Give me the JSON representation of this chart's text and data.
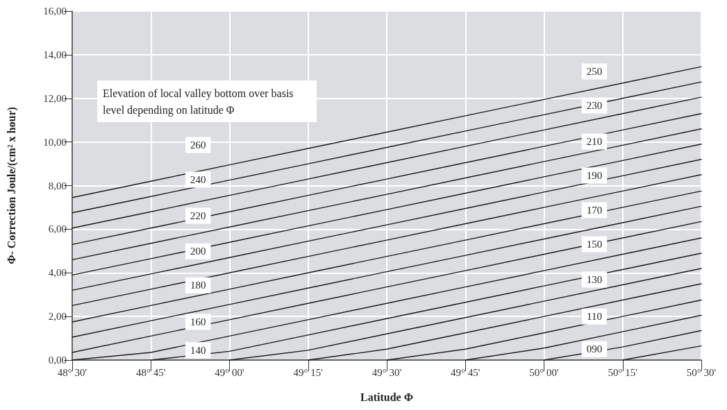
{
  "chart_data": {
    "type": "line",
    "xlabel": "Latitude Φ",
    "ylabel": "Φ- Correction Joule/(cm² x hour)",
    "categories": [
      "48° 30'",
      "48° 45'",
      "49° 00'",
      "49° 15'",
      "49° 30'",
      "49° 45'",
      "50° 00'",
      "50° 15'",
      "50° 30'"
    ],
    "ylim": [
      0,
      16
    ],
    "yticks": [
      {
        "value": 0,
        "label": "0,00"
      },
      {
        "value": 2,
        "label": "2,00"
      },
      {
        "value": 4,
        "label": "4,00"
      },
      {
        "value": 6,
        "label": "6,00"
      },
      {
        "value": 8,
        "label": "8,00"
      },
      {
        "value": 10,
        "label": "10,00"
      },
      {
        "value": 12,
        "label": "12,00"
      },
      {
        "value": 14,
        "label": "14,00"
      },
      {
        "value": 16,
        "label": "16,00"
      }
    ],
    "grid": true,
    "marker": "none",
    "line_style": "solid",
    "series": [
      {
        "color": "#1a1a1a",
        "values": [
          null,
          null,
          null,
          null,
          null,
          null,
          null,
          0,
          0.65
        ]
      },
      {
        "color": "#1a1a1a",
        "values": [
          null,
          null,
          null,
          null,
          null,
          null,
          0,
          0.6,
          1.35
        ]
      },
      {
        "color": "#1a1a1a",
        "values": [
          null,
          null,
          null,
          null,
          null,
          0,
          0.55,
          1.3,
          2.05
        ]
      },
      {
        "color": "#1a1a1a",
        "values": [
          null,
          null,
          null,
          null,
          0,
          0.5,
          1.25,
          2,
          2.75
        ]
      },
      {
        "color": "#1a1a1a",
        "values": [
          null,
          null,
          null,
          0,
          0.5,
          1.25,
          2,
          2.75,
          3.5
        ]
      },
      {
        "color": "#1a1a1a",
        "values": [
          null,
          null,
          0,
          0.45,
          1.2,
          1.95,
          2.7,
          3.45,
          4.2
        ]
      },
      {
        "color": "#1a1a1a",
        "values": [
          null,
          0,
          0.4,
          1.15,
          1.9,
          2.65,
          3.4,
          4.15,
          4.9
        ]
      },
      {
        "color": "#1a1a1a",
        "values": [
          0,
          0.35,
          1.1,
          1.85,
          2.6,
          3.35,
          4.1,
          4.85,
          5.6
        ]
      },
      {
        "color": "#1a1a1a",
        "values": [
          0.35,
          1.1,
          1.85,
          2.6,
          3.35,
          4.1,
          4.85,
          5.6,
          6.35
        ]
      },
      {
        "color": "#1a1a1a",
        "values": [
          1.05,
          1.8,
          2.55,
          3.3,
          4.05,
          4.8,
          5.55,
          6.3,
          7.05
        ]
      },
      {
        "color": "#1a1a1a",
        "values": [
          1.75,
          2.5,
          3.25,
          4,
          4.75,
          5.5,
          6.25,
          7,
          7.75
        ]
      },
      {
        "color": "#1a1a1a",
        "values": [
          2.5,
          3.25,
          4,
          4.75,
          5.5,
          6.25,
          7,
          7.75,
          8.5
        ]
      },
      {
        "color": "#1a1a1a",
        "values": [
          3.2,
          3.95,
          4.7,
          5.45,
          6.2,
          6.95,
          7.7,
          8.45,
          9.2
        ]
      },
      {
        "color": "#1a1a1a",
        "values": [
          3.9,
          4.65,
          5.4,
          6.15,
          6.9,
          7.65,
          8.4,
          9.15,
          9.9
        ]
      },
      {
        "color": "#1a1a1a",
        "values": [
          4.6,
          5.35,
          6.1,
          6.85,
          7.6,
          8.35,
          9.1,
          9.85,
          10.6
        ]
      },
      {
        "color": "#1a1a1a",
        "values": [
          5.3,
          6.05,
          6.8,
          7.55,
          8.3,
          9.05,
          9.8,
          10.55,
          11.3
        ]
      },
      {
        "color": "#1a1a1a",
        "values": [
          6.05,
          6.8,
          7.55,
          8.3,
          9.05,
          9.8,
          10.55,
          11.3,
          12.05
        ]
      },
      {
        "color": "#1a1a1a",
        "values": [
          6.75,
          7.5,
          8.25,
          9,
          9.75,
          10.5,
          11.25,
          12,
          12.75
        ]
      },
      {
        "color": "#1a1a1a",
        "values": [
          7.45,
          8.2,
          8.95,
          9.7,
          10.45,
          11.2,
          11.95,
          12.7,
          13.45
        ]
      }
    ],
    "annotations": [
      "Elevation of local valley bottom over basis level depending on latitude Φ",
      {
        "text": "260",
        "y": 9.86
      },
      {
        "text": "240",
        "y": 8.27
      },
      {
        "text": "220",
        "y": 6.62
      },
      {
        "text": "200",
        "y": 4.99
      },
      {
        "text": "180",
        "y": 3.43
      },
      {
        "text": "160",
        "y": 1.75
      },
      {
        "text": "140",
        "y": 0.45
      },
      {
        "text": "250",
        "y": 13.23
      },
      {
        "text": "230",
        "y": 11.67
      },
      {
        "text": "210",
        "y": 10.02
      },
      {
        "text": "190",
        "y": 8.46
      },
      {
        "text": "170",
        "y": 6.87
      },
      {
        "text": "150",
        "y": 5.31
      },
      {
        "text": "130",
        "y": 3.69
      },
      {
        "text": "110",
        "y": 2.0
      },
      {
        "text": "090",
        "y": 0.5
      }
    ]
  }
}
